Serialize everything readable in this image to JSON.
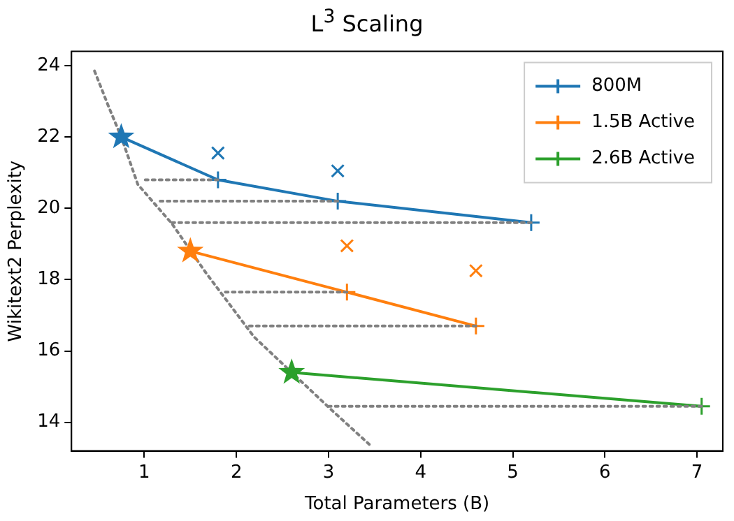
{
  "chart_data": {
    "type": "line",
    "title": "L$^{3}$ Scaling",
    "xlabel": "Total Parameters (B)",
    "ylabel": "Wikitext2 Perplexity",
    "xlim": [
      0.21,
      7.28
    ],
    "xticks": [
      1,
      2,
      3,
      4,
      5,
      6,
      7
    ],
    "ylim": [
      13.2,
      24.4
    ],
    "yticks": [
      14,
      16,
      18,
      20,
      22,
      24
    ],
    "grid": false,
    "legend": "top right",
    "marker": "cross",
    "line_style": "solid",
    "series": [
      {
        "name": "800M",
        "color": "#1f77b4",
        "x": [
          0.75,
          1.8,
          3.1,
          5.2
        ],
        "values": [
          22.0,
          20.8,
          20.2,
          19.6
        ]
      },
      {
        "name": "1.5B Active",
        "color": "#ff7f0e",
        "x": [
          1.5,
          3.2,
          4.6
        ],
        "values": [
          18.8,
          17.65,
          16.7
        ]
      },
      {
        "name": "2.6B Active",
        "color": "#2ca02c",
        "x": [
          2.6,
          7.05
        ],
        "values": [
          15.4,
          14.45
        ]
      },
      {
        "type": "scatter",
        "marker": "star",
        "color": "#1f77b4",
        "x": [
          0.75
        ],
        "values": [
          22.0
        ]
      },
      {
        "type": "scatter",
        "marker": "star",
        "color": "#ff7f0e",
        "x": [
          1.5
        ],
        "values": [
          18.8
        ]
      },
      {
        "type": "scatter",
        "marker": "star",
        "color": "#2ca02c",
        "x": [
          2.6
        ],
        "values": [
          15.4
        ]
      },
      {
        "type": "scatter",
        "marker": "x",
        "color": "#1f77b4",
        "x": [
          1.8,
          3.1
        ],
        "values": [
          21.55,
          21.05
        ]
      },
      {
        "type": "scatter",
        "marker": "x",
        "color": "#ff7f0e",
        "x": [
          3.2,
          4.6
        ],
        "values": [
          18.95,
          18.25
        ]
      },
      {
        "type": "line",
        "marker": "none",
        "line_style": "dotted",
        "color": "#808080",
        "x": [
          0.46,
          0.61,
          0.75,
          0.93,
          1.3,
          1.67,
          2.19,
          2.6,
          3.04,
          3.46
        ],
        "values": [
          23.85,
          22.87,
          22.0,
          20.67,
          19.57,
          18.19,
          16.4,
          15.4,
          14.33,
          13.34
        ]
      },
      {
        "type": "line",
        "marker": "none",
        "line_style": "dotted",
        "color": "#808080",
        "x": [
          1.8,
          1.0
        ],
        "values": [
          20.8,
          20.8
        ]
      },
      {
        "type": "line",
        "marker": "none",
        "line_style": "dotted",
        "color": "#808080",
        "x": [
          3.1,
          1.14
        ],
        "values": [
          20.2,
          20.2
        ]
      },
      {
        "type": "line",
        "marker": "none",
        "line_style": "dotted",
        "color": "#808080",
        "x": [
          5.2,
          1.3
        ],
        "values": [
          19.6,
          19.6
        ]
      },
      {
        "type": "line",
        "marker": "none",
        "line_style": "dotted",
        "color": "#808080",
        "x": [
          3.2,
          1.85
        ],
        "values": [
          17.65,
          17.65
        ]
      },
      {
        "type": "line",
        "marker": "none",
        "line_style": "dotted",
        "color": "#808080",
        "x": [
          4.6,
          2.14
        ],
        "values": [
          16.7,
          16.7
        ]
      },
      {
        "type": "line",
        "marker": "none",
        "line_style": "dotted",
        "color": "#808080",
        "x": [
          7.05,
          3.01
        ],
        "values": [
          14.45,
          14.45
        ]
      }
    ]
  }
}
